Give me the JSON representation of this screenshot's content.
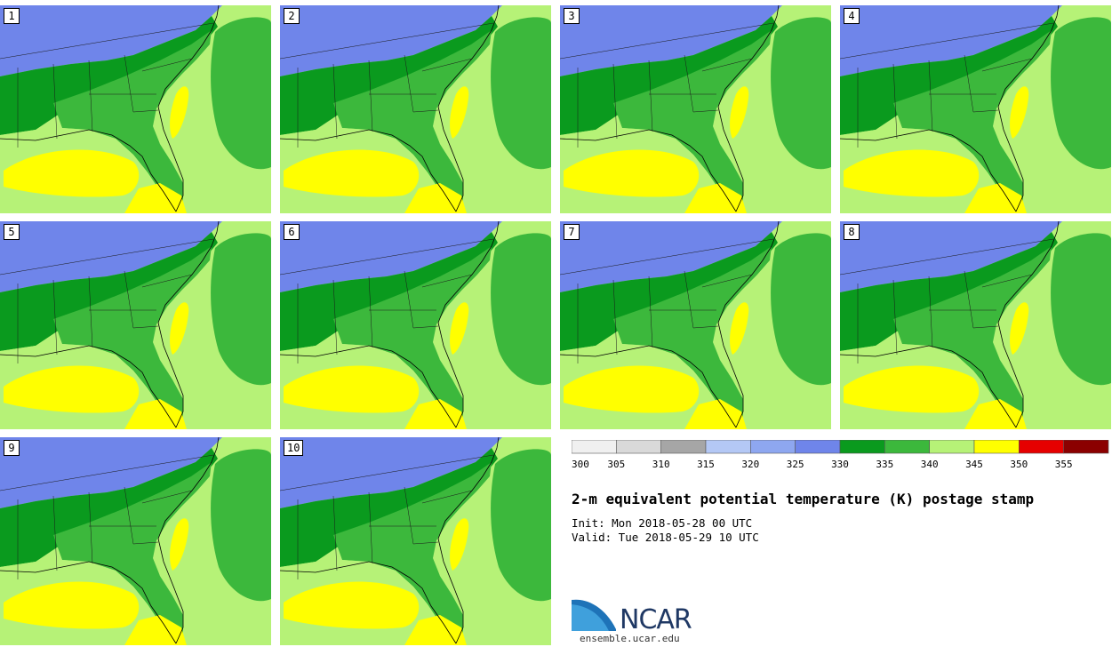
{
  "title": "2-m equivalent potential temperature (K) postage stamp",
  "init": "Init: Mon 2018-05-28 00 UTC",
  "valid": "Valid: Tue 2018-05-29 10 UTC",
  "logo": {
    "text": "NCAR",
    "url": "ensemble.ucar.edu"
  },
  "colorbar": {
    "ticks": [
      "300",
      "305",
      "310",
      "315",
      "320",
      "325",
      "330",
      "335",
      "340",
      "345",
      "350",
      "355"
    ],
    "colors": [
      "#f0f0f0",
      "#d9d9d9",
      "#a6a6a6",
      "#b4c8f5",
      "#8ea7f0",
      "#6f85ea",
      "#0a9a1e",
      "#3cb83c",
      "#b6f277",
      "#ffff00",
      "#e60000",
      "#8b0000"
    ]
  },
  "members": [
    "1",
    "2",
    "3",
    "4",
    "5",
    "6",
    "7",
    "8",
    "9",
    "10"
  ]
}
